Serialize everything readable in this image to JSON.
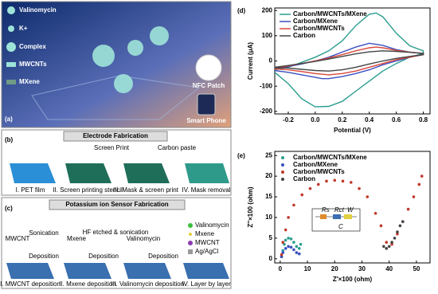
{
  "panel_a": {
    "label": "(a)",
    "legend": [
      "Valinomycin",
      "K+",
      "Complex",
      "MWCNTs",
      "MXene"
    ],
    "nfc_patch": "NFC Patch",
    "smart_phone": "Smart Phone"
  },
  "panel_b": {
    "label": "(b)",
    "header": "Electrode Fabrication",
    "screen_print": "Screen Print",
    "carbon_paste": "Carbon paste",
    "steps": [
      "I. PET film",
      "II. Screen printing stencil",
      "III. Mask & screen print",
      "IV. Mask removal"
    ]
  },
  "panel_c": {
    "label": "(c)",
    "header": "Potassium ion Sensor Fabrication",
    "annotations": [
      "MWCNT",
      "Sonication",
      "Deposition",
      "Mxene",
      "HF etched & sonication",
      "Deposition",
      "Valinomycin",
      "Deposition"
    ],
    "legend": [
      "Valinomycin",
      "Mxene",
      "MWCNT",
      "Ag/AgCl"
    ],
    "steps": [
      "I. MWCNT deposition",
      "II. Mxene  deposition",
      "III. Valinomycin deposition",
      "IV. Layer by layer"
    ]
  },
  "chart_data": [
    {
      "type": "line",
      "panel_label": "(d)",
      "x_label": "Potential (V)",
      "y_label": "Current (μA)",
      "legend_position": "upper left",
      "xlim": [
        -0.3,
        0.85
      ],
      "xticks": [
        -0.2,
        {
          "value": 0,
          "label": "0.0"
        },
        0.2,
        0.4,
        0.6,
        0.8
      ],
      "ylim": [
        -210,
        210
      ],
      "yticks": [
        -200,
        -100,
        0,
        100,
        200
      ],
      "series": [
        {
          "name": "Carbon/MWCNTs/MXene",
          "color": "#2a9d8f",
          "x": [
            -0.3,
            -0.2,
            -0.1,
            0,
            0.1,
            0.2,
            0.3,
            0.4,
            0.45,
            0.5,
            0.6,
            0.7,
            0.8,
            0.8,
            0.7,
            0.6,
            0.5,
            0.4,
            0.3,
            0.2,
            0.1,
            0,
            -0.1,
            -0.2,
            -0.3
          ],
          "values": [
            -35,
            -25,
            -5,
            15,
            40,
            80,
            140,
            185,
            190,
            175,
            110,
            60,
            40,
            30,
            15,
            -10,
            -40,
            -80,
            -120,
            -160,
            -180,
            -182,
            -150,
            -90,
            -45
          ]
        },
        {
          "name": "Carbon/MXene",
          "color": "#3a4fc0",
          "x": [
            -0.3,
            -0.2,
            -0.1,
            0,
            0.1,
            0.2,
            0.3,
            0.4,
            0.5,
            0.6,
            0.7,
            0.8,
            0.8,
            0.7,
            0.6,
            0.5,
            0.4,
            0.3,
            0.2,
            0.1,
            0.05,
            0,
            -0.1,
            -0.2,
            -0.3
          ],
          "values": [
            -30,
            -22,
            -12,
            0,
            15,
            35,
            55,
            70,
            62,
            45,
            35,
            30,
            25,
            15,
            0,
            -15,
            -35,
            -50,
            -62,
            -70,
            -70,
            -65,
            -55,
            -45,
            -38
          ]
        },
        {
          "name": "Carbon/MWCNTs",
          "color": "#d9473a",
          "x": [
            -0.3,
            -0.2,
            -0.1,
            0,
            0.1,
            0.2,
            0.3,
            0.4,
            0.45,
            0.5,
            0.6,
            0.7,
            0.8,
            0.8,
            0.7,
            0.6,
            0.5,
            0.4,
            0.3,
            0.2,
            0.1,
            0,
            -0.1,
            -0.2,
            -0.3
          ],
          "values": [
            -28,
            -20,
            -10,
            0,
            12,
            25,
            40,
            52,
            55,
            52,
            42,
            35,
            30,
            25,
            15,
            5,
            -10,
            -25,
            -40,
            -50,
            -55,
            -50,
            -42,
            -35,
            -32
          ]
        },
        {
          "name": "Carbon",
          "color": "#444444",
          "x": [
            -0.3,
            -0.2,
            -0.1,
            0,
            0.1,
            0.2,
            0.3,
            0.4,
            0.5,
            0.6,
            0.7,
            0.8,
            0.8,
            0.7,
            0.6,
            0.5,
            0.4,
            0.3,
            0.2,
            0.1,
            0,
            -0.1,
            -0.2,
            -0.3
          ],
          "values": [
            -25,
            -18,
            -10,
            -2,
            8,
            18,
            28,
            36,
            40,
            38,
            34,
            30,
            25,
            18,
            10,
            0,
            -12,
            -25,
            -35,
            -40,
            -38,
            -33,
            -28,
            -27
          ]
        }
      ]
    },
    {
      "type": "scatter",
      "panel_label": "(e)",
      "x_label": "Z'×100 (ohm)",
      "y_label": "Z''×100 (ohm)",
      "legend_position": "upper left",
      "xlim": [
        -2,
        55
      ],
      "xticks": [
        0,
        10,
        20,
        30,
        40,
        50
      ],
      "ylim": [
        -1,
        26
      ],
      "yticks": [
        0,
        5,
        10,
        15,
        20,
        25
      ],
      "inset": {
        "labels": [
          "Rs",
          "Rct",
          "W",
          "C"
        ]
      },
      "series": [
        {
          "name": "Carbon/MWCNTs/MXene",
          "color": "#2a9d8f",
          "x": [
            0.5,
            1,
            1.5,
            2,
            3,
            4,
            5,
            6,
            7,
            7.5
          ],
          "values": [
            0.5,
            2,
            3.5,
            4.5,
            5,
            4.8,
            4,
            3,
            2.5,
            3.5
          ]
        },
        {
          "name": "Carbon/MXene",
          "color": "#3a4fc0",
          "x": [
            0.5,
            1,
            2,
            3,
            4,
            5,
            6,
            7
          ],
          "values": [
            0.5,
            1.5,
            2.5,
            3,
            2.8,
            2.2,
            1.5,
            1.2
          ]
        },
        {
          "name": "Carbon/MWCNTs",
          "color": "#c0392b",
          "x": [
            0.5,
            1,
            2,
            3,
            5,
            8,
            11,
            14,
            17,
            20,
            23,
            26,
            29,
            32,
            35,
            37,
            39,
            41,
            43,
            45,
            47,
            49,
            51,
            52
          ],
          "values": [
            1,
            4,
            7,
            10,
            13,
            15.5,
            17,
            18,
            18.8,
            19,
            18.8,
            18.5,
            17,
            15,
            11,
            8,
            4,
            3.5,
            6,
            9,
            12,
            15,
            18,
            20
          ]
        },
        {
          "name": "Carbon",
          "color": "#444444",
          "x": [
            38,
            39,
            40,
            41,
            42,
            43,
            44,
            45
          ],
          "values": [
            3,
            2.5,
            3,
            4,
            5,
            6.5,
            8,
            9
          ]
        }
      ]
    }
  ]
}
